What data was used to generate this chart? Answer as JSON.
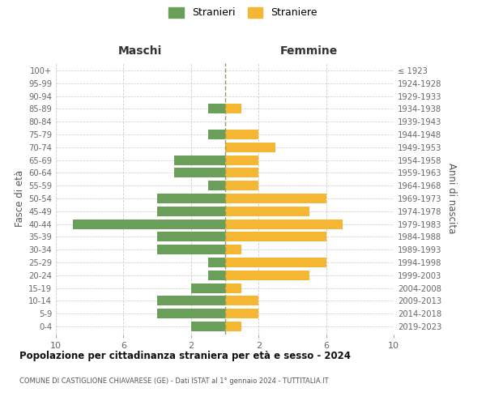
{
  "age_groups": [
    "0-4",
    "5-9",
    "10-14",
    "15-19",
    "20-24",
    "25-29",
    "30-34",
    "35-39",
    "40-44",
    "45-49",
    "50-54",
    "55-59",
    "60-64",
    "65-69",
    "70-74",
    "75-79",
    "80-84",
    "85-89",
    "90-94",
    "95-99",
    "100+"
  ],
  "birth_years": [
    "2019-2023",
    "2014-2018",
    "2009-2013",
    "2004-2008",
    "1999-2003",
    "1994-1998",
    "1989-1993",
    "1984-1988",
    "1979-1983",
    "1974-1978",
    "1969-1973",
    "1964-1968",
    "1959-1963",
    "1954-1958",
    "1949-1953",
    "1944-1948",
    "1939-1943",
    "1934-1938",
    "1929-1933",
    "1924-1928",
    "≤ 1923"
  ],
  "males": [
    2,
    4,
    4,
    2,
    1,
    1,
    4,
    4,
    9,
    4,
    4,
    1,
    3,
    3,
    0,
    1,
    0,
    1,
    0,
    0,
    0
  ],
  "females": [
    1,
    2,
    2,
    1,
    5,
    6,
    1,
    6,
    7,
    5,
    6,
    2,
    2,
    2,
    3,
    2,
    0,
    1,
    0,
    0,
    0
  ],
  "male_color": "#6a9f5a",
  "female_color": "#f5b731",
  "background_color": "#ffffff",
  "grid_color": "#cccccc",
  "title": "Popolazione per cittadinanza straniera per età e sesso - 2024",
  "subtitle": "COMUNE DI CASTIGLIONE CHIAVARESE (GE) - Dati ISTAT al 1° gennaio 2024 - TUTTITALIA.IT",
  "xlabel_left": "Maschi",
  "xlabel_right": "Femmine",
  "ylabel_left": "Fasce di età",
  "ylabel_right": "Anni di nascita",
  "legend_stranieri": "Stranieri",
  "legend_straniere": "Straniere",
  "xlim": 10
}
